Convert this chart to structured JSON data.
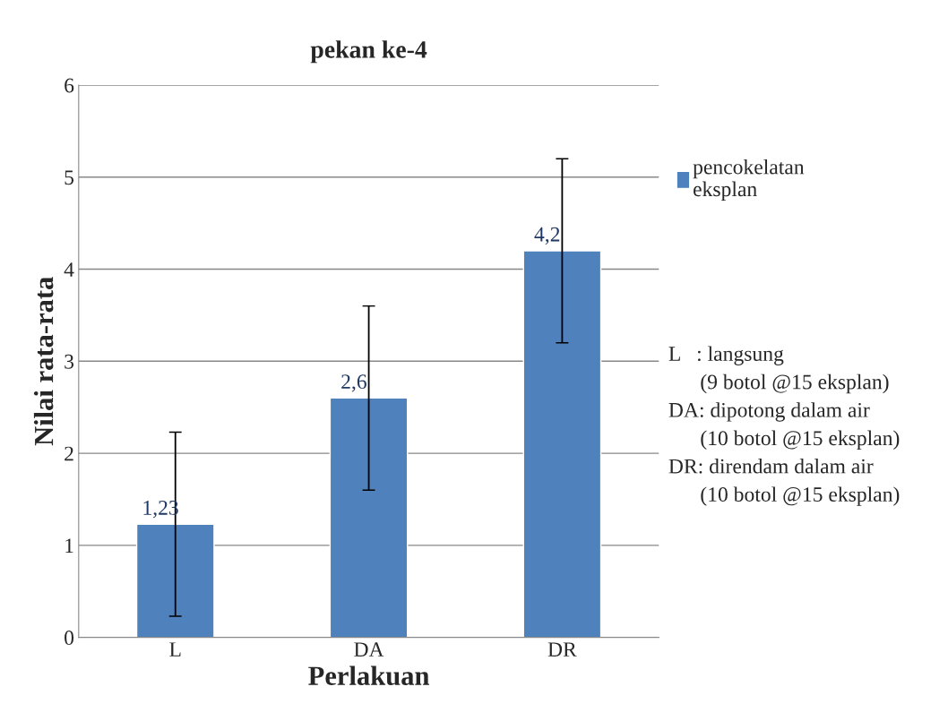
{
  "chart_data": {
    "type": "bar",
    "title": "pekan ke-4",
    "xlabel": "Perlakuan",
    "ylabel": "Nilai rata-rata",
    "categories": [
      "L",
      "DA",
      "DR"
    ],
    "series": [
      {
        "name": "pencokelatan eksplan",
        "color": "#4f81bd",
        "values": [
          1.23,
          2.6,
          4.2
        ],
        "errors": [
          1,
          1,
          1
        ],
        "value_labels": [
          "1,23",
          "2,6",
          "4,2"
        ]
      }
    ],
    "ylim": [
      0,
      6
    ],
    "yticks": [
      0,
      1,
      2,
      3,
      4,
      5,
      6
    ],
    "grid": "y",
    "legend": "right",
    "annotations": [
      "L   : langsung",
      "      (9 botol @15 eksplan)",
      "DA: dipotong dalam air",
      "      (10 botol @15 eksplan)",
      "DR: direndam dalam air",
      "      (10 botol @15 eksplan)"
    ]
  }
}
